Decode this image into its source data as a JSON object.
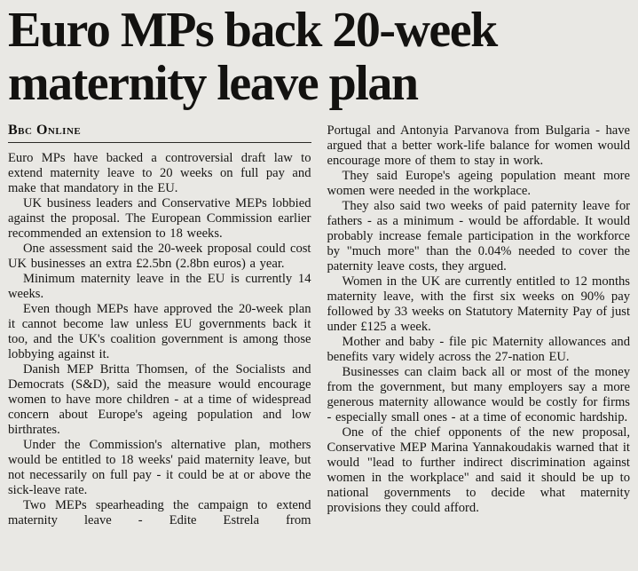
{
  "colors": {
    "page_background": "#e9e8e4",
    "text": "#161513"
  },
  "article": {
    "headline": "Euro MPs back 20-week maternity leave plan",
    "byline": "Bbc Online",
    "left": [
      "Euro MPs have backed a controversial draft law to extend maternity leave to 20 weeks on full pay and make that mandatory in the EU.",
      "UK business leaders and Conservative MEPs lobbied against the proposal. The European Commission earlier recommended an extension to 18 weeks.",
      "One assessment said the 20-week proposal could cost UK businesses an extra £2.5bn (2.8bn euros) a year.",
      "Minimum maternity leave in the EU is currently 14 weeks.",
      "Even though MEPs have approved the 20-week plan it cannot become law unless EU governments back it too, and the UK's coalition government is among those lobbying against it.",
      "Danish MEP Britta Thomsen, of the Socialists and Democrats (S&D), said the measure would encourage women to have more children - at a time of widespread concern about Europe's ageing population and low birthrates.",
      "Under the Commission's alternative plan, mothers would be entitled to 18 weeks' paid maternity leave, but not necessarily on full pay - it could be at or above the sick-leave rate.",
      "Two MEPs spearheading the campaign to extend maternity leave - Edite Estrela from"
    ],
    "right": [
      "Portugal and Antonyia Parvanova from Bulgaria - have argued that a better work-life balance for women would encourage more of them to stay in work.",
      "They said Europe's ageing population meant more women were needed in the workplace.",
      "They also said two weeks of paid paternity leave for fathers - as a minimum - would be affordable. It would probably increase female participation in the workforce by \"much more\" than the 0.04% needed to cover the paternity leave costs, they argued.",
      "Women in the UK are currently entitled to 12 months maternity leave, with the first six weeks on 90% pay followed by 33 weeks on Statutory Maternity Pay of just under £125 a week.",
      "Mother and baby - file pic Maternity allowances and benefits vary widely across the 27-nation EU.",
      "Businesses can claim back all or most of the money from the government, but many employers say a more generous maternity allowance would be costly for firms - especially small ones - at a time of economic hardship.",
      "One of the chief opponents of the new proposal, Conservative MEP Marina Yannakoudakis warned that it would \"lead to further indirect discrimination against women in the workplace\" and said it should be up to national governments to decide what maternity provisions they could afford."
    ]
  }
}
